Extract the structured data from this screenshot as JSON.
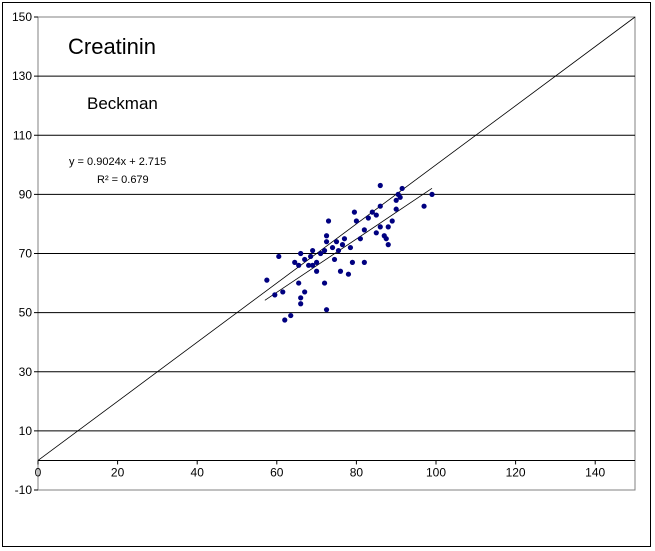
{
  "chart_data": {
    "type": "scatter",
    "title": "Creatinin",
    "subtitle": "Beckman",
    "equation": "y = 0.9024x + 2.715",
    "r2_label": "R² = 0.679",
    "xlim": [
      0,
      150
    ],
    "ylim": [
      -10,
      150
    ],
    "x_ticks": [
      0,
      20,
      40,
      60,
      80,
      100,
      120,
      140
    ],
    "y_ticks": [
      -10,
      10,
      30,
      50,
      70,
      90,
      110,
      130,
      150
    ],
    "grid": "horizontal",
    "identity_line": {
      "from": [
        0,
        0
      ],
      "to": [
        150,
        150
      ]
    },
    "trend_line": {
      "slope": 0.9024,
      "intercept": 2.715,
      "x_range": [
        57,
        99
      ]
    },
    "point_color": "#000080",
    "points": [
      [
        57.5,
        61
      ],
      [
        59.5,
        56
      ],
      [
        60.5,
        69
      ],
      [
        61.5,
        57
      ],
      [
        62,
        47.5
      ],
      [
        63.5,
        49
      ],
      [
        64.5,
        67
      ],
      [
        65.5,
        60
      ],
      [
        65.5,
        66
      ],
      [
        66,
        70
      ],
      [
        66,
        55
      ],
      [
        66,
        53
      ],
      [
        67,
        68
      ],
      [
        67,
        57
      ],
      [
        68,
        66
      ],
      [
        68.5,
        69
      ],
      [
        69,
        71
      ],
      [
        69,
        66
      ],
      [
        70,
        67
      ],
      [
        70,
        64
      ],
      [
        71,
        70
      ],
      [
        72,
        71
      ],
      [
        72.5,
        74
      ],
      [
        72.5,
        76
      ],
      [
        73,
        81
      ],
      [
        72,
        60
      ],
      [
        72.5,
        51
      ],
      [
        74,
        72
      ],
      [
        74.5,
        68
      ],
      [
        75,
        74
      ],
      [
        75.5,
        71
      ],
      [
        76,
        64
      ],
      [
        76.5,
        73
      ],
      [
        77,
        75
      ],
      [
        78,
        63
      ],
      [
        78.5,
        72
      ],
      [
        79,
        67
      ],
      [
        79.5,
        84
      ],
      [
        80,
        81
      ],
      [
        81,
        75
      ],
      [
        82,
        78
      ],
      [
        82,
        67
      ],
      [
        83,
        82
      ],
      [
        84,
        84
      ],
      [
        85,
        83
      ],
      [
        85,
        77
      ],
      [
        86,
        79
      ],
      [
        86,
        93
      ],
      [
        86,
        86
      ],
      [
        87,
        76
      ],
      [
        87.5,
        75
      ],
      [
        88,
        73
      ],
      [
        88,
        79
      ],
      [
        89,
        81
      ],
      [
        90,
        85
      ],
      [
        90,
        88
      ],
      [
        90.5,
        90
      ],
      [
        91,
        89
      ],
      [
        91.5,
        92
      ],
      [
        97,
        86
      ],
      [
        99,
        90
      ]
    ]
  }
}
